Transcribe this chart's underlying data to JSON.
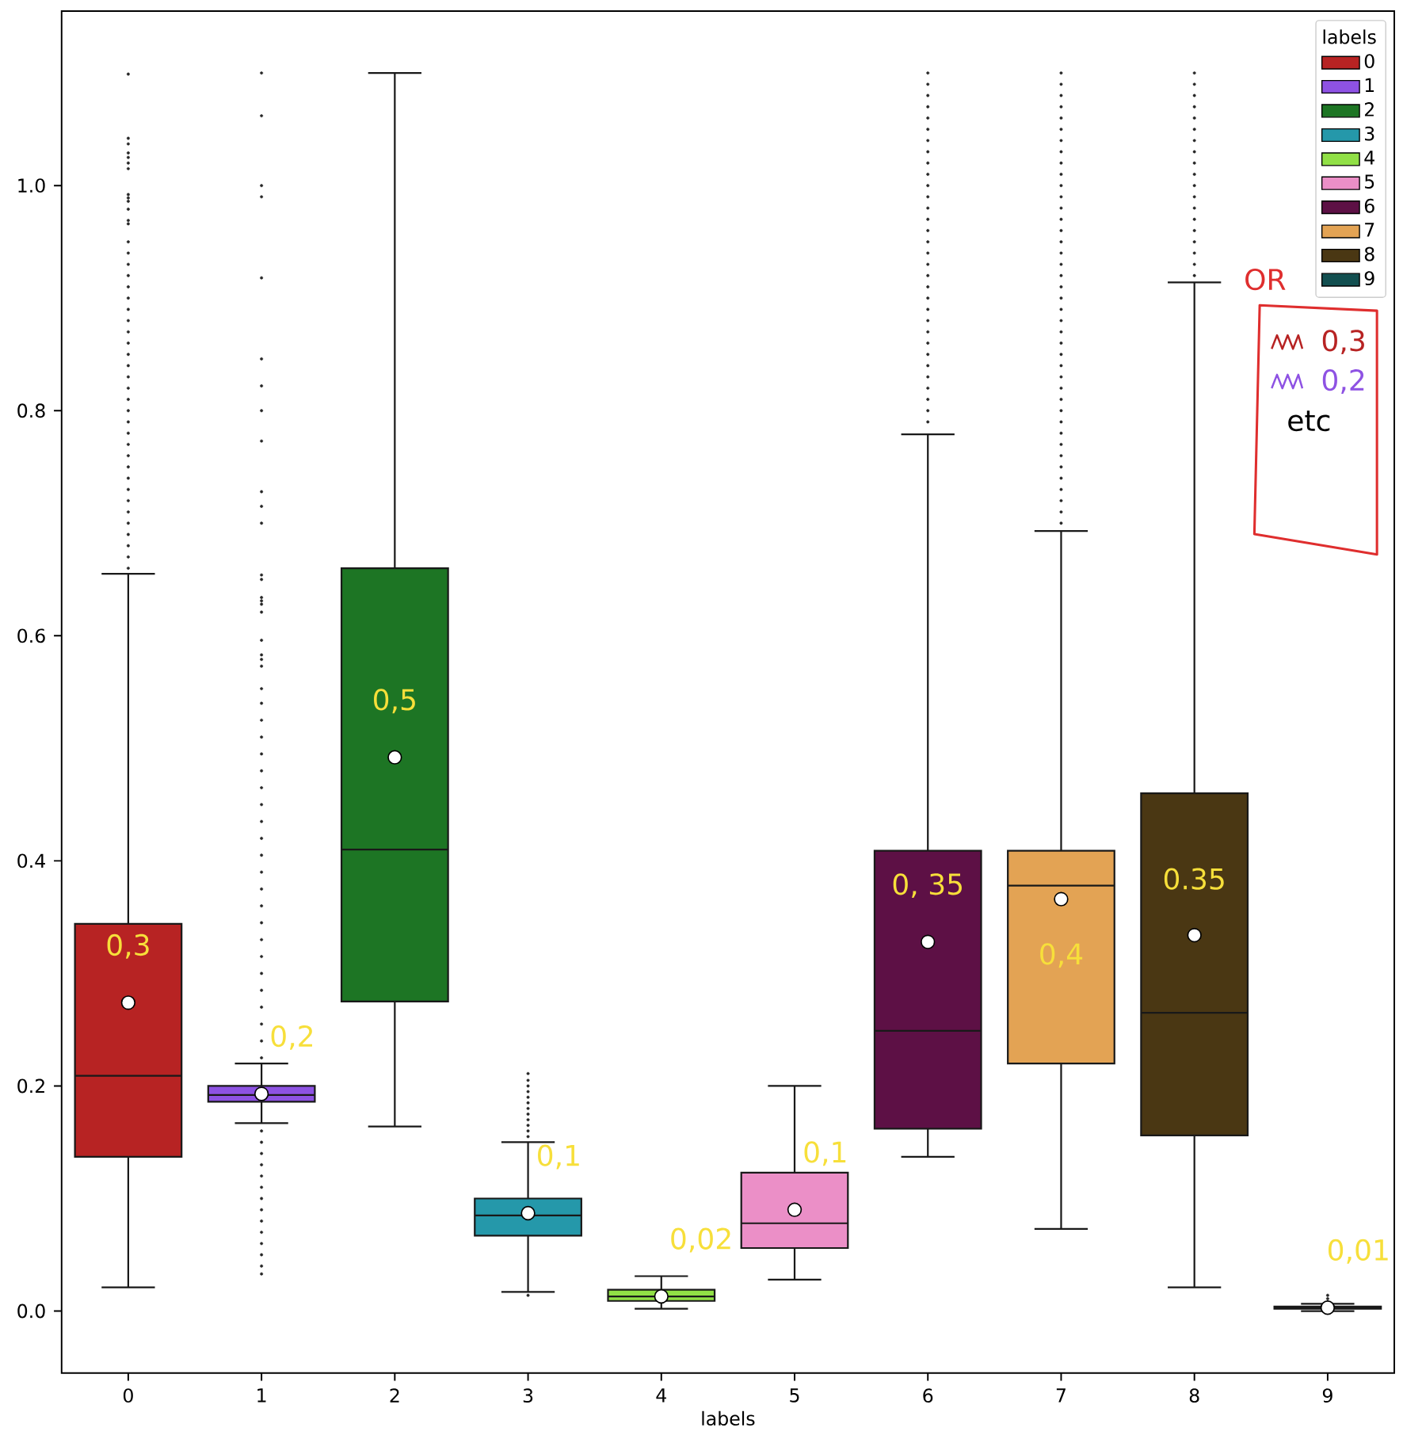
{
  "chart_data": {
    "type": "box",
    "xlabel": "labels",
    "legend_title": "labels",
    "legend": "top right",
    "categories": [
      "0",
      "1",
      "2",
      "3",
      "4",
      "5",
      "6",
      "7",
      "8",
      "9"
    ],
    "ylim": [
      -0.055,
      1.155
    ],
    "yticks": [
      {
        "value": 0,
        "label": "0.0"
      },
      {
        "value": 0.2,
        "label": "0.2"
      },
      {
        "value": 0.4,
        "label": "0.4"
      },
      {
        "value": 0.6,
        "label": "0.6"
      },
      {
        "value": 0.8,
        "label": "0.8"
      },
      {
        "value": 1.0,
        "label": "1.0"
      }
    ],
    "series": [
      {
        "name": "0",
        "color": "#b72323",
        "boxes": [
          {
            "low": 0.021,
            "q1": 0.137,
            "median": 0.209,
            "q3": 0.344,
            "high": 0.655,
            "mean": 0.274,
            "outliers": [
              0.66,
              0.67,
              0.68,
              0.69,
              0.7,
              0.71,
              0.72,
              0.73,
              0.74,
              0.75,
              0.76,
              0.77,
              0.78,
              0.79,
              0.8,
              0.81,
              0.82,
              0.83,
              0.84,
              0.85,
              0.86,
              0.87,
              0.88,
              0.89,
              0.9,
              0.91,
              0.92,
              0.93,
              0.94,
              0.95,
              0.966,
              0.969,
              0.979,
              0.986,
              0.989,
              0.992,
              1.015,
              1.02,
              1.025,
              1.029,
              1.037,
              1.042,
              1.099
            ]
          },
          null,
          null,
          null,
          null,
          null,
          null,
          null,
          null,
          null
        ]
      },
      {
        "name": "1",
        "color": "#8e52e3",
        "boxes": [
          null,
          {
            "low": 0.167,
            "q1": 0.186,
            "median": 0.192,
            "q3": 0.2,
            "high": 0.22,
            "mean": 0.193,
            "outliers": [
              0.033,
              0.04,
              0.05,
              0.06,
              0.07,
              0.08,
              0.09,
              0.1,
              0.11,
              0.12,
              0.13,
              0.14,
              0.15,
              0.16,
              0.225,
              0.24,
              0.255,
              0.27,
              0.285,
              0.3,
              0.315,
              0.33,
              0.345,
              0.36,
              0.375,
              0.39,
              0.405,
              0.42,
              0.435,
              0.45,
              0.465,
              0.48,
              0.495,
              0.51,
              0.525,
              0.54,
              0.553,
              0.573,
              0.579,
              0.583,
              0.596,
              0.621,
              0.628,
              0.631,
              0.634,
              0.65,
              0.654,
              0.7,
              0.715,
              0.728,
              0.773,
              0.8,
              0.822,
              0.846,
              0.918,
              0.99,
              1.0,
              1.062,
              1.1
            ]
          },
          null,
          null,
          null,
          null,
          null,
          null,
          null,
          null
        ]
      },
      {
        "name": "2",
        "color": "#1d7524",
        "boxes": [
          null,
          null,
          {
            "low": 0.164,
            "q1": 0.275,
            "median": 0.41,
            "q3": 0.66,
            "high": 1.1,
            "mean": 0.492
          },
          null,
          null,
          null,
          null,
          null,
          null,
          null
        ]
      },
      {
        "name": "3",
        "color": "#2598aa",
        "boxes": [
          null,
          null,
          null,
          {
            "low": 0.017,
            "q1": 0.067,
            "median": 0.085,
            "q3": 0.1,
            "high": 0.15,
            "mean": 0.087,
            "outliers": [
              0.014,
              0.155,
              0.16,
              0.165,
              0.17,
              0.175,
              0.18,
              0.185,
              0.19,
              0.195,
              0.2,
              0.205,
              0.211
            ]
          },
          null,
          null,
          null,
          null,
          null,
          null
        ]
      },
      {
        "name": "4",
        "color": "#91e046",
        "boxes": [
          null,
          null,
          null,
          null,
          {
            "low": 0.002,
            "q1": 0.009,
            "median": 0.013,
            "q3": 0.019,
            "high": 0.031,
            "mean": 0.013
          },
          null,
          null,
          null,
          null,
          null
        ]
      },
      {
        "name": "5",
        "color": "#eb8fc7",
        "boxes": [
          null,
          null,
          null,
          null,
          null,
          {
            "low": 0.028,
            "q1": 0.056,
            "median": 0.078,
            "q3": 0.123,
            "high": 0.2,
            "mean": 0.09
          },
          null,
          null,
          null,
          null
        ]
      },
      {
        "name": "6",
        "color": "#5d1045",
        "boxes": [
          null,
          null,
          null,
          null,
          null,
          null,
          {
            "low": 0.137,
            "q1": 0.162,
            "median": 0.249,
            "q3": 0.409,
            "high": 0.779,
            "mean": 0.328,
            "outliers": [
              0.79,
              0.8,
              0.81,
              0.82,
              0.83,
              0.84,
              0.85,
              0.86,
              0.87,
              0.88,
              0.89,
              0.9,
              0.91,
              0.92,
              0.93,
              0.94,
              0.95,
              0.96,
              0.97,
              0.98,
              0.99,
              1.0,
              1.01,
              1.02,
              1.03,
              1.04,
              1.05,
              1.06,
              1.07,
              1.08,
              1.09,
              1.1
            ]
          },
          null,
          null,
          null
        ]
      },
      {
        "name": "7",
        "color": "#e3a354",
        "boxes": [
          null,
          null,
          null,
          null,
          null,
          null,
          null,
          {
            "low": 0.073,
            "q1": 0.22,
            "median": 0.378,
            "q3": 0.409,
            "high": 0.693,
            "mean": 0.366,
            "outliers": [
              0.7,
              0.71,
              0.72,
              0.73,
              0.74,
              0.75,
              0.76,
              0.77,
              0.78,
              0.79,
              0.8,
              0.81,
              0.82,
              0.83,
              0.84,
              0.85,
              0.86,
              0.87,
              0.88,
              0.89,
              0.9,
              0.91,
              0.92,
              0.93,
              0.94,
              0.95,
              0.96,
              0.97,
              0.98,
              0.99,
              1.0,
              1.01,
              1.02,
              1.03,
              1.04,
              1.05,
              1.06,
              1.07,
              1.08,
              1.09,
              1.1
            ]
          },
          null,
          null
        ]
      },
      {
        "name": "8",
        "color": "#4a3713",
        "boxes": [
          null,
          null,
          null,
          null,
          null,
          null,
          null,
          null,
          {
            "low": 0.021,
            "q1": 0.156,
            "median": 0.265,
            "q3": 0.46,
            "high": 0.914,
            "mean": 0.334,
            "outliers": [
              0.92,
              0.93,
              0.94,
              0.95,
              0.96,
              0.97,
              0.98,
              0.99,
              1.0,
              1.01,
              1.02,
              1.03,
              1.04,
              1.05,
              1.06,
              1.07,
              1.08,
              1.09,
              1.1
            ]
          },
          null
        ]
      },
      {
        "name": "9",
        "color": "#124f50",
        "boxes": [
          null,
          null,
          null,
          null,
          null,
          null,
          null,
          null,
          null,
          {
            "low": 0.0,
            "q1": 0.002,
            "median": 0.003,
            "q3": 0.004,
            "high": 0.0065,
            "mean": 0.003,
            "outliers": [
              0.008,
              0.011,
              0.014
            ]
          }
        ]
      }
    ],
    "annotations": [
      "0,3",
      "0,2",
      "0,5",
      "0,1",
      "0,02",
      "0,1",
      "0, 35",
      "0,4",
      "0.35",
      "0,01",
      "OR",
      "0,3",
      "0,2",
      "etc"
    ]
  }
}
